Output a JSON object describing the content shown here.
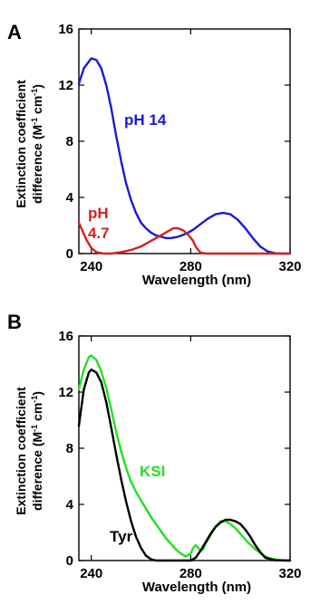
{
  "chart_data": [
    {
      "panel": "A",
      "type": "line",
      "xlabel": "Wavelength (nm)",
      "ylabel_line1": "Extinction coefficient",
      "ylabel_line2_pre": "difference (M",
      "ylabel_sup1": "-1",
      "ylabel_mid": " cm",
      "ylabel_sup2": "-1",
      "ylabel_post": ")",
      "xlim": [
        235,
        320
      ],
      "ylim": [
        0,
        16
      ],
      "xticks": [
        240,
        280,
        320
      ],
      "yticks": [
        0,
        4,
        8,
        12,
        16
      ],
      "series": [
        {
          "name": "pH 14",
          "color": "#1a1ad6",
          "x": [
            235,
            237,
            240,
            242,
            244,
            246,
            248,
            250,
            252,
            254,
            256,
            258,
            260,
            262,
            264,
            266,
            268,
            270,
            272,
            275,
            278,
            281,
            284,
            287,
            290,
            293,
            296,
            299,
            302,
            305,
            308,
            311,
            314,
            317,
            320
          ],
          "y": [
            12.1,
            13.2,
            13.9,
            13.8,
            13.2,
            12.0,
            10.4,
            8.4,
            6.6,
            5.0,
            3.8,
            2.9,
            2.2,
            1.8,
            1.5,
            1.3,
            1.2,
            1.1,
            1.1,
            1.2,
            1.4,
            1.7,
            2.1,
            2.5,
            2.8,
            2.9,
            2.8,
            2.4,
            1.8,
            1.1,
            0.5,
            0.15,
            0.02,
            0.0,
            0.0
          ]
        },
        {
          "name": "pH 4.7",
          "label_line1": "pH",
          "label_line2": "4.7",
          "color": "#d42020",
          "x": [
            235,
            236,
            238,
            240,
            242,
            245,
            248,
            252,
            256,
            260,
            264,
            268,
            271,
            273,
            275,
            277,
            279,
            281,
            282,
            283,
            284,
            286,
            290,
            300,
            310,
            320
          ],
          "y": [
            2.2,
            1.8,
            1.0,
            0.4,
            0.1,
            0.0,
            0.0,
            0.1,
            0.25,
            0.5,
            0.9,
            1.3,
            1.6,
            1.8,
            1.8,
            1.65,
            1.35,
            0.9,
            0.5,
            0.25,
            0.08,
            0.0,
            0.0,
            0.0,
            0.0,
            0.0
          ]
        }
      ]
    },
    {
      "panel": "B",
      "type": "line",
      "xlabel": "Wavelength (nm)",
      "ylabel_line1": "Extinction coefficient",
      "ylabel_line2_pre": "difference (M",
      "ylabel_sup1": "-1",
      "ylabel_mid": " cm",
      "ylabel_sup2": "-1",
      "ylabel_post": ")",
      "xlim": [
        235,
        320
      ],
      "ylim": [
        0,
        16
      ],
      "xticks": [
        240,
        280,
        320
      ],
      "yticks": [
        0,
        4,
        8,
        12,
        16
      ],
      "series": [
        {
          "name": "KSI",
          "color": "#22e022",
          "x": [
            235,
            237,
            239,
            240,
            242,
            244,
            246,
            248,
            250,
            252,
            254,
            256,
            258,
            260,
            262,
            264,
            266,
            268,
            270,
            272,
            274,
            276,
            278,
            280,
            281,
            282,
            283,
            284,
            285,
            286,
            288,
            290,
            292,
            294,
            296,
            298,
            300,
            303,
            306,
            309,
            312,
            315,
            318,
            320
          ],
          "y": [
            12.2,
            13.6,
            14.5,
            14.6,
            14.3,
            13.5,
            12.3,
            10.8,
            9.2,
            7.8,
            6.6,
            5.6,
            4.9,
            4.3,
            3.7,
            3.1,
            2.6,
            2.1,
            1.6,
            1.2,
            0.8,
            0.5,
            0.3,
            0.5,
            0.9,
            1.1,
            0.9,
            0.7,
            0.8,
            1.2,
            1.8,
            2.4,
            2.8,
            2.8,
            2.6,
            2.3,
            1.9,
            1.3,
            0.8,
            0.4,
            0.15,
            0.05,
            0.0,
            0.0
          ]
        },
        {
          "name": "Tyr",
          "color": "#000000",
          "x": [
            235,
            237,
            239,
            240,
            242,
            244,
            246,
            248,
            250,
            252,
            254,
            256,
            258,
            260,
            262,
            264,
            266,
            268,
            270,
            272,
            274,
            276,
            278,
            280,
            282,
            284,
            286,
            288,
            290,
            292,
            294,
            296,
            298,
            300,
            302,
            304,
            306,
            308,
            310,
            314,
            320
          ],
          "y": [
            9.6,
            12.2,
            13.4,
            13.6,
            13.4,
            12.7,
            11.3,
            9.5,
            7.6,
            5.8,
            4.2,
            2.8,
            1.7,
            0.9,
            0.35,
            0.1,
            0.0,
            0.0,
            0.0,
            0.0,
            0.0,
            0.0,
            0.0,
            0.0,
            0.2,
            0.7,
            1.3,
            1.9,
            2.4,
            2.7,
            2.9,
            2.9,
            2.8,
            2.6,
            2.2,
            1.7,
            1.1,
            0.6,
            0.2,
            0.02,
            0.0
          ]
        }
      ]
    }
  ]
}
